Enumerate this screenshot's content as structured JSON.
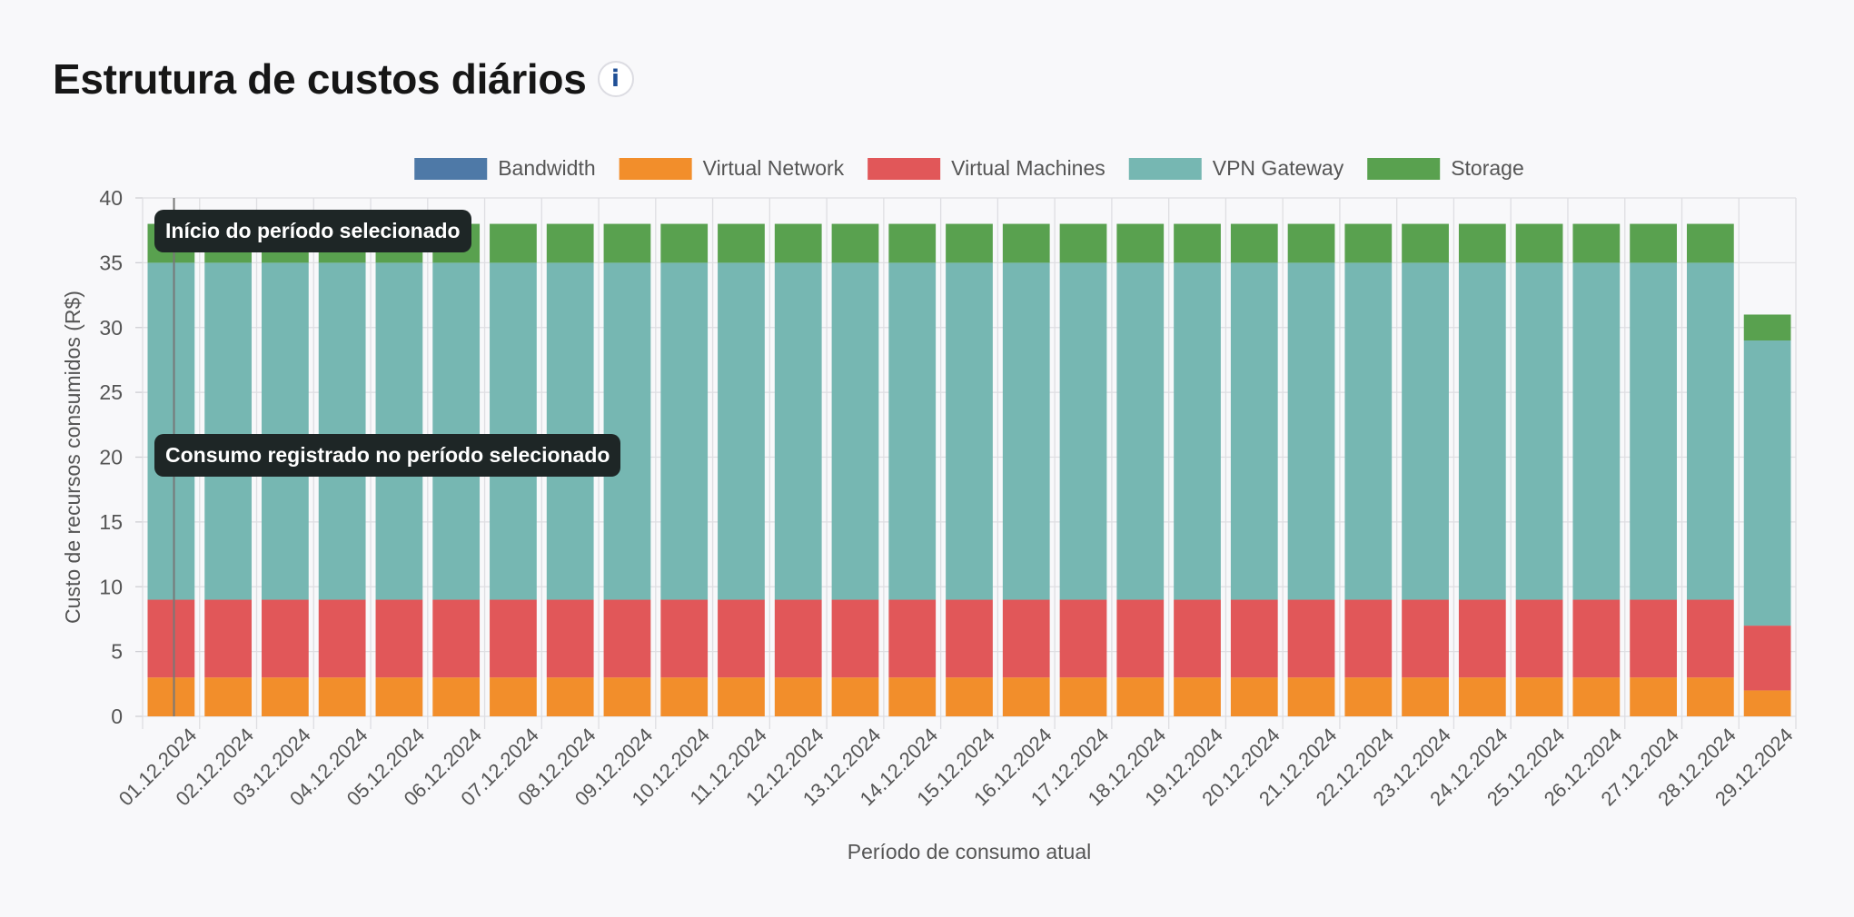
{
  "header": {
    "title": "Estrutura de custos diários",
    "info_icon_glyph": "i"
  },
  "tooltips": {
    "period_start": "Início do período selecionado",
    "period_consumption": "Consumo registrado no período selecionado"
  },
  "colors": {
    "Bandwidth": "#4e79a7",
    "Virtual Network": "#f28e2b",
    "Virtual Machines": "#e15759",
    "VPN Gateway": "#76b7b2",
    "Storage": "#59a14f"
  },
  "chart_data": {
    "type": "bar",
    "stacked": true,
    "title": "Estrutura de custos diários",
    "xlabel": "Período de consumo atual",
    "ylabel": "Custo de recursos consumidos (R$)",
    "ylim": [
      0,
      40
    ],
    "yticks": [
      0,
      5,
      10,
      15,
      20,
      25,
      30,
      35,
      40
    ],
    "grid": true,
    "legend_position": "top-center",
    "categories": [
      "01.12.2024",
      "02.12.2024",
      "03.12.2024",
      "04.12.2024",
      "05.12.2024",
      "06.12.2024",
      "07.12.2024",
      "08.12.2024",
      "09.12.2024",
      "10.12.2024",
      "11.12.2024",
      "12.12.2024",
      "13.12.2024",
      "14.12.2024",
      "15.12.2024",
      "16.12.2024",
      "17.12.2024",
      "18.12.2024",
      "19.12.2024",
      "20.12.2024",
      "21.12.2024",
      "22.12.2024",
      "23.12.2024",
      "24.12.2024",
      "25.12.2024",
      "26.12.2024",
      "27.12.2024",
      "28.12.2024",
      "29.12.2024"
    ],
    "series": [
      {
        "name": "Bandwidth",
        "values": [
          0,
          0,
          0,
          0,
          0,
          0,
          0,
          0,
          0,
          0,
          0,
          0,
          0,
          0,
          0,
          0,
          0,
          0,
          0,
          0,
          0,
          0,
          0,
          0,
          0,
          0,
          0,
          0,
          0
        ]
      },
      {
        "name": "Virtual Network",
        "values": [
          3,
          3,
          3,
          3,
          3,
          3,
          3,
          3,
          3,
          3,
          3,
          3,
          3,
          3,
          3,
          3,
          3,
          3,
          3,
          3,
          3,
          3,
          3,
          3,
          3,
          3,
          3,
          3,
          2
        ]
      },
      {
        "name": "Virtual Machines",
        "values": [
          6,
          6,
          6,
          6,
          6,
          6,
          6,
          6,
          6,
          6,
          6,
          6,
          6,
          6,
          6,
          6,
          6,
          6,
          6,
          6,
          6,
          6,
          6,
          6,
          6,
          6,
          6,
          6,
          5
        ]
      },
      {
        "name": "VPN Gateway",
        "values": [
          26,
          26,
          26,
          26,
          26,
          26,
          26,
          26,
          26,
          26,
          26,
          26,
          26,
          26,
          26,
          26,
          26,
          26,
          26,
          26,
          26,
          26,
          26,
          26,
          26,
          26,
          26,
          26,
          22
        ]
      },
      {
        "name": "Storage",
        "values": [
          3,
          3,
          3,
          3,
          3,
          3,
          3,
          3,
          3,
          3,
          3,
          3,
          3,
          3,
          3,
          3,
          3,
          3,
          3,
          3,
          3,
          3,
          3,
          3,
          3,
          3,
          3,
          3,
          2
        ]
      }
    ]
  }
}
